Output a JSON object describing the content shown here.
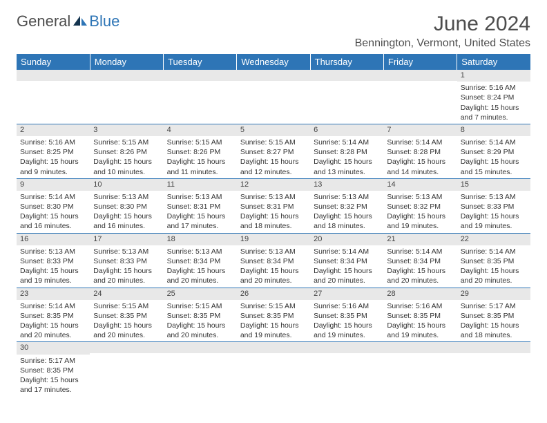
{
  "logo": {
    "text1": "General",
    "text2": "Blue"
  },
  "header": {
    "month_title": "June 2024",
    "location": "Bennington, Vermont, United States"
  },
  "weekdays": [
    "Sunday",
    "Monday",
    "Tuesday",
    "Wednesday",
    "Thursday",
    "Friday",
    "Saturday"
  ],
  "colors": {
    "header_bg": "#2e75b6",
    "header_fg": "#ffffff",
    "daynum_bg": "#e8e8e8",
    "rule": "#2e75b6",
    "text": "#333333"
  },
  "weeks": [
    [
      {
        "n": "",
        "sunrise": "",
        "sunset": "",
        "daylight": ""
      },
      {
        "n": "",
        "sunrise": "",
        "sunset": "",
        "daylight": ""
      },
      {
        "n": "",
        "sunrise": "",
        "sunset": "",
        "daylight": ""
      },
      {
        "n": "",
        "sunrise": "",
        "sunset": "",
        "daylight": ""
      },
      {
        "n": "",
        "sunrise": "",
        "sunset": "",
        "daylight": ""
      },
      {
        "n": "",
        "sunrise": "",
        "sunset": "",
        "daylight": ""
      },
      {
        "n": "1",
        "sunrise": "Sunrise: 5:16 AM",
        "sunset": "Sunset: 8:24 PM",
        "daylight": "Daylight: 15 hours and 7 minutes."
      }
    ],
    [
      {
        "n": "2",
        "sunrise": "Sunrise: 5:16 AM",
        "sunset": "Sunset: 8:25 PM",
        "daylight": "Daylight: 15 hours and 9 minutes."
      },
      {
        "n": "3",
        "sunrise": "Sunrise: 5:15 AM",
        "sunset": "Sunset: 8:26 PM",
        "daylight": "Daylight: 15 hours and 10 minutes."
      },
      {
        "n": "4",
        "sunrise": "Sunrise: 5:15 AM",
        "sunset": "Sunset: 8:26 PM",
        "daylight": "Daylight: 15 hours and 11 minutes."
      },
      {
        "n": "5",
        "sunrise": "Sunrise: 5:15 AM",
        "sunset": "Sunset: 8:27 PM",
        "daylight": "Daylight: 15 hours and 12 minutes."
      },
      {
        "n": "6",
        "sunrise": "Sunrise: 5:14 AM",
        "sunset": "Sunset: 8:28 PM",
        "daylight": "Daylight: 15 hours and 13 minutes."
      },
      {
        "n": "7",
        "sunrise": "Sunrise: 5:14 AM",
        "sunset": "Sunset: 8:28 PM",
        "daylight": "Daylight: 15 hours and 14 minutes."
      },
      {
        "n": "8",
        "sunrise": "Sunrise: 5:14 AM",
        "sunset": "Sunset: 8:29 PM",
        "daylight": "Daylight: 15 hours and 15 minutes."
      }
    ],
    [
      {
        "n": "9",
        "sunrise": "Sunrise: 5:14 AM",
        "sunset": "Sunset: 8:30 PM",
        "daylight": "Daylight: 15 hours and 16 minutes."
      },
      {
        "n": "10",
        "sunrise": "Sunrise: 5:13 AM",
        "sunset": "Sunset: 8:30 PM",
        "daylight": "Daylight: 15 hours and 16 minutes."
      },
      {
        "n": "11",
        "sunrise": "Sunrise: 5:13 AM",
        "sunset": "Sunset: 8:31 PM",
        "daylight": "Daylight: 15 hours and 17 minutes."
      },
      {
        "n": "12",
        "sunrise": "Sunrise: 5:13 AM",
        "sunset": "Sunset: 8:31 PM",
        "daylight": "Daylight: 15 hours and 18 minutes."
      },
      {
        "n": "13",
        "sunrise": "Sunrise: 5:13 AM",
        "sunset": "Sunset: 8:32 PM",
        "daylight": "Daylight: 15 hours and 18 minutes."
      },
      {
        "n": "14",
        "sunrise": "Sunrise: 5:13 AM",
        "sunset": "Sunset: 8:32 PM",
        "daylight": "Daylight: 15 hours and 19 minutes."
      },
      {
        "n": "15",
        "sunrise": "Sunrise: 5:13 AM",
        "sunset": "Sunset: 8:33 PM",
        "daylight": "Daylight: 15 hours and 19 minutes."
      }
    ],
    [
      {
        "n": "16",
        "sunrise": "Sunrise: 5:13 AM",
        "sunset": "Sunset: 8:33 PM",
        "daylight": "Daylight: 15 hours and 19 minutes."
      },
      {
        "n": "17",
        "sunrise": "Sunrise: 5:13 AM",
        "sunset": "Sunset: 8:33 PM",
        "daylight": "Daylight: 15 hours and 20 minutes."
      },
      {
        "n": "18",
        "sunrise": "Sunrise: 5:13 AM",
        "sunset": "Sunset: 8:34 PM",
        "daylight": "Daylight: 15 hours and 20 minutes."
      },
      {
        "n": "19",
        "sunrise": "Sunrise: 5:13 AM",
        "sunset": "Sunset: 8:34 PM",
        "daylight": "Daylight: 15 hours and 20 minutes."
      },
      {
        "n": "20",
        "sunrise": "Sunrise: 5:14 AM",
        "sunset": "Sunset: 8:34 PM",
        "daylight": "Daylight: 15 hours and 20 minutes."
      },
      {
        "n": "21",
        "sunrise": "Sunrise: 5:14 AM",
        "sunset": "Sunset: 8:34 PM",
        "daylight": "Daylight: 15 hours and 20 minutes."
      },
      {
        "n": "22",
        "sunrise": "Sunrise: 5:14 AM",
        "sunset": "Sunset: 8:35 PM",
        "daylight": "Daylight: 15 hours and 20 minutes."
      }
    ],
    [
      {
        "n": "23",
        "sunrise": "Sunrise: 5:14 AM",
        "sunset": "Sunset: 8:35 PM",
        "daylight": "Daylight: 15 hours and 20 minutes."
      },
      {
        "n": "24",
        "sunrise": "Sunrise: 5:15 AM",
        "sunset": "Sunset: 8:35 PM",
        "daylight": "Daylight: 15 hours and 20 minutes."
      },
      {
        "n": "25",
        "sunrise": "Sunrise: 5:15 AM",
        "sunset": "Sunset: 8:35 PM",
        "daylight": "Daylight: 15 hours and 20 minutes."
      },
      {
        "n": "26",
        "sunrise": "Sunrise: 5:15 AM",
        "sunset": "Sunset: 8:35 PM",
        "daylight": "Daylight: 15 hours and 19 minutes."
      },
      {
        "n": "27",
        "sunrise": "Sunrise: 5:16 AM",
        "sunset": "Sunset: 8:35 PM",
        "daylight": "Daylight: 15 hours and 19 minutes."
      },
      {
        "n": "28",
        "sunrise": "Sunrise: 5:16 AM",
        "sunset": "Sunset: 8:35 PM",
        "daylight": "Daylight: 15 hours and 19 minutes."
      },
      {
        "n": "29",
        "sunrise": "Sunrise: 5:17 AM",
        "sunset": "Sunset: 8:35 PM",
        "daylight": "Daylight: 15 hours and 18 minutes."
      }
    ],
    [
      {
        "n": "30",
        "sunrise": "Sunrise: 5:17 AM",
        "sunset": "Sunset: 8:35 PM",
        "daylight": "Daylight: 15 hours and 17 minutes."
      },
      {
        "n": "",
        "sunrise": "",
        "sunset": "",
        "daylight": ""
      },
      {
        "n": "",
        "sunrise": "",
        "sunset": "",
        "daylight": ""
      },
      {
        "n": "",
        "sunrise": "",
        "sunset": "",
        "daylight": ""
      },
      {
        "n": "",
        "sunrise": "",
        "sunset": "",
        "daylight": ""
      },
      {
        "n": "",
        "sunrise": "",
        "sunset": "",
        "daylight": ""
      },
      {
        "n": "",
        "sunrise": "",
        "sunset": "",
        "daylight": ""
      }
    ]
  ]
}
